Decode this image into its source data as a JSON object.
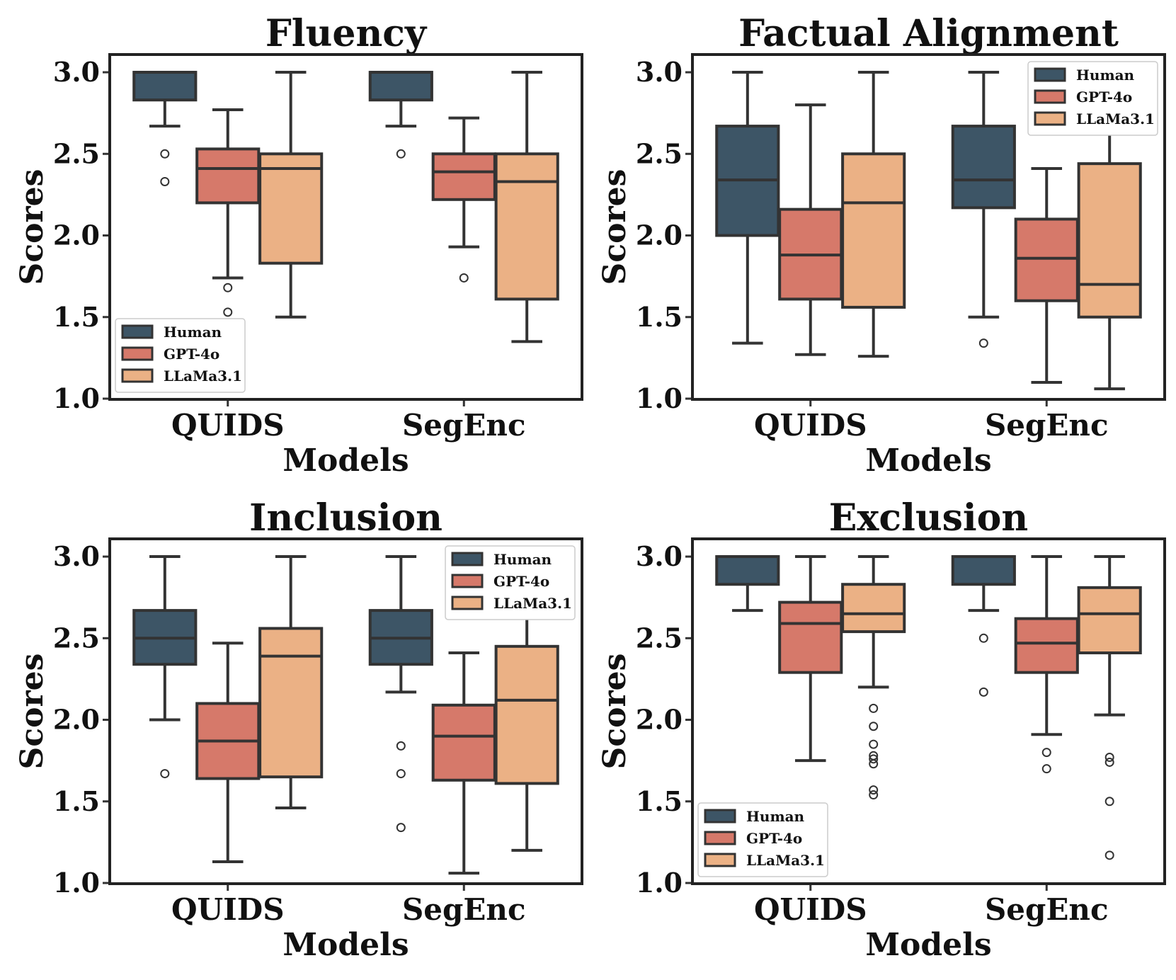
{
  "chart_data": [
    {
      "type": "box",
      "title": "Fluency",
      "xlabel": "Models",
      "ylabel": "Scores",
      "ylim": [
        1.0,
        3.1
      ],
      "yticks": [
        "1.0",
        "1.5",
        "2.0",
        "2.5",
        "3.0"
      ],
      "ytick_values": [
        1.0,
        1.5,
        2.0,
        2.5,
        3.0
      ],
      "categories": [
        "QUIDS",
        "SegEnc"
      ],
      "legend_position": "lower-left",
      "series": [
        {
          "name": "Human",
          "color": "#3d5566",
          "boxes": [
            {
              "q1": 2.83,
              "median": 3.0,
              "q3": 3.0,
              "whislo": 2.67,
              "whishi": 3.0,
              "fliers": [
                2.5,
                2.33
              ]
            },
            {
              "q1": 2.83,
              "median": 3.0,
              "q3": 3.0,
              "whislo": 2.67,
              "whishi": 3.0,
              "fliers": [
                2.5
              ]
            }
          ]
        },
        {
          "name": "GPT-4o",
          "color": "#d6796a",
          "boxes": [
            {
              "q1": 2.2,
              "median": 2.41,
              "q3": 2.53,
              "whislo": 1.74,
              "whishi": 2.77,
              "fliers": [
                1.68,
                1.53
              ]
            },
            {
              "q1": 2.22,
              "median": 2.39,
              "q3": 2.5,
              "whislo": 1.93,
              "whishi": 2.72,
              "fliers": [
                1.74
              ]
            }
          ]
        },
        {
          "name": "LLaMa3.1",
          "color": "#ebb185",
          "boxes": [
            {
              "q1": 1.83,
              "median": 2.41,
              "q3": 2.5,
              "whislo": 1.5,
              "whishi": 3.0,
              "fliers": []
            },
            {
              "q1": 1.61,
              "median": 2.33,
              "q3": 2.5,
              "whislo": 1.35,
              "whishi": 3.0,
              "fliers": []
            }
          ]
        }
      ]
    },
    {
      "type": "box",
      "title": "Factual Alignment",
      "xlabel": "Models",
      "ylabel": "Scores",
      "ylim": [
        1.0,
        3.1
      ],
      "yticks": [
        "1.0",
        "1.5",
        "2.0",
        "2.5",
        "3.0"
      ],
      "ytick_values": [
        1.0,
        1.5,
        2.0,
        2.5,
        3.0
      ],
      "categories": [
        "QUIDS",
        "SegEnc"
      ],
      "legend_position": "upper-right",
      "series": [
        {
          "name": "Human",
          "color": "#3d5566",
          "boxes": [
            {
              "q1": 2.0,
              "median": 2.34,
              "q3": 2.67,
              "whislo": 1.34,
              "whishi": 3.0,
              "fliers": []
            },
            {
              "q1": 2.17,
              "median": 2.34,
              "q3": 2.67,
              "whislo": 1.5,
              "whishi": 3.0,
              "fliers": [
                1.34
              ]
            }
          ]
        },
        {
          "name": "GPT-4o",
          "color": "#d6796a",
          "boxes": [
            {
              "q1": 1.61,
              "median": 1.88,
              "q3": 2.16,
              "whislo": 1.27,
              "whishi": 2.8,
              "fliers": []
            },
            {
              "q1": 1.6,
              "median": 1.86,
              "q3": 2.1,
              "whislo": 1.1,
              "whishi": 2.41,
              "fliers": []
            }
          ]
        },
        {
          "name": "LLaMa3.1",
          "color": "#ebb185",
          "boxes": [
            {
              "q1": 1.56,
              "median": 2.2,
              "q3": 2.5,
              "whislo": 1.26,
              "whishi": 3.0,
              "fliers": []
            },
            {
              "q1": 1.5,
              "median": 1.7,
              "q3": 2.44,
              "whislo": 1.06,
              "whishi": 3.0,
              "fliers": []
            }
          ]
        }
      ]
    },
    {
      "type": "box",
      "title": "Inclusion",
      "xlabel": "Models",
      "ylabel": "Scores",
      "ylim": [
        1.0,
        3.1
      ],
      "yticks": [
        "1.0",
        "1.5",
        "2.0",
        "2.5",
        "3.0"
      ],
      "ytick_values": [
        1.0,
        1.5,
        2.0,
        2.5,
        3.0
      ],
      "categories": [
        "QUIDS",
        "SegEnc"
      ],
      "legend_position": "upper-right",
      "series": [
        {
          "name": "Human",
          "color": "#3d5566",
          "boxes": [
            {
              "q1": 2.34,
              "median": 2.5,
              "q3": 2.67,
              "whislo": 2.0,
              "whishi": 3.0,
              "fliers": [
                1.67
              ]
            },
            {
              "q1": 2.34,
              "median": 2.5,
              "q3": 2.67,
              "whislo": 2.17,
              "whishi": 3.0,
              "fliers": [
                1.84,
                1.67,
                1.34
              ]
            }
          ]
        },
        {
          "name": "GPT-4o",
          "color": "#d6796a",
          "boxes": [
            {
              "q1": 1.64,
              "median": 1.87,
              "q3": 2.1,
              "whislo": 1.13,
              "whishi": 2.47,
              "fliers": []
            },
            {
              "q1": 1.63,
              "median": 1.9,
              "q3": 2.09,
              "whislo": 1.06,
              "whishi": 2.41,
              "fliers": []
            }
          ]
        },
        {
          "name": "LLaMa3.1",
          "color": "#ebb185",
          "boxes": [
            {
              "q1": 1.65,
              "median": 2.39,
              "q3": 2.56,
              "whislo": 1.46,
              "whishi": 3.0,
              "fliers": []
            },
            {
              "q1": 1.61,
              "median": 2.12,
              "q3": 2.45,
              "whislo": 1.2,
              "whishi": 3.0,
              "fliers": []
            }
          ]
        }
      ]
    },
    {
      "type": "box",
      "title": "Exclusion",
      "xlabel": "Models",
      "ylabel": "Scores",
      "ylim": [
        1.0,
        3.1
      ],
      "yticks": [
        "1.0",
        "1.5",
        "2.0",
        "2.5",
        "3.0"
      ],
      "ytick_values": [
        1.0,
        1.5,
        2.0,
        2.5,
        3.0
      ],
      "categories": [
        "QUIDS",
        "SegEnc"
      ],
      "legend_position": "lower-left",
      "series": [
        {
          "name": "Human",
          "color": "#3d5566",
          "boxes": [
            {
              "q1": 2.83,
              "median": 3.0,
              "q3": 3.0,
              "whislo": 2.67,
              "whishi": 3.0,
              "fliers": []
            },
            {
              "q1": 2.83,
              "median": 3.0,
              "q3": 3.0,
              "whislo": 2.67,
              "whishi": 3.0,
              "fliers": [
                2.5,
                2.17
              ]
            }
          ]
        },
        {
          "name": "GPT-4o",
          "color": "#d6796a",
          "boxes": [
            {
              "q1": 2.29,
              "median": 2.59,
              "q3": 2.72,
              "whislo": 1.75,
              "whishi": 3.0,
              "fliers": []
            },
            {
              "q1": 2.29,
              "median": 2.47,
              "q3": 2.62,
              "whislo": 1.91,
              "whishi": 3.0,
              "fliers": [
                1.8,
                1.7
              ]
            }
          ]
        },
        {
          "name": "LLaMa3.1",
          "color": "#ebb185",
          "boxes": [
            {
              "q1": 2.54,
              "median": 2.65,
              "q3": 2.83,
              "whislo": 2.2,
              "whishi": 3.0,
              "fliers": [
                2.07,
                1.96,
                1.85,
                1.78,
                1.76,
                1.73,
                1.57,
                1.54
              ]
            },
            {
              "q1": 2.41,
              "median": 2.65,
              "q3": 2.81,
              "whislo": 2.03,
              "whishi": 3.0,
              "fliers": [
                1.77,
                1.74,
                1.5,
                1.17
              ]
            }
          ]
        }
      ]
    }
  ]
}
